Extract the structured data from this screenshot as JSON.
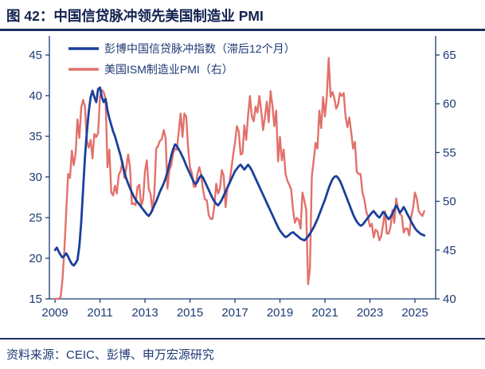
{
  "page": {
    "title": "图 42：中国信贷脉冲领先美国制造业 PMI",
    "source": "资料来源：CEIC、彭博、申万宏源研究"
  },
  "colors": {
    "title_navy": "#12214f",
    "rule_navy": "#1d2f63",
    "axis": "#1d3a75",
    "credit_impulse_blue": "#1a409a",
    "ism_pmi_red": "#e2716b"
  },
  "chart_data": {
    "type": "line",
    "title": "中国信贷脉冲领先美国制造业 PMI",
    "grid": false,
    "legend_position": "top-left",
    "x_start": 2009.0,
    "points_per_year": 12,
    "x_range": [
      2008.75,
      2025.92
    ],
    "x_ticks": [
      2009,
      2011,
      2013,
      2015,
      2017,
      2019,
      2021,
      2023,
      2025
    ],
    "left_axis": {
      "min": 15,
      "max": 45,
      "ticks": [
        15,
        20,
        25,
        30,
        35,
        40,
        45
      ]
    },
    "right_axis": {
      "min": 40,
      "max": 65,
      "ticks": [
        40,
        45,
        50,
        55,
        60,
        65
      ]
    },
    "series": [
      {
        "id": "credit-impulse",
        "name": "彭博中国信贷脉冲指数（滞后12个月）",
        "axis": "left",
        "color": "#1a409a",
        "width": 2.8,
        "values": [
          21.0,
          21.3,
          20.8,
          20.4,
          20.1,
          20.3,
          20.6,
          20.2,
          19.7,
          19.3,
          19.1,
          19.4,
          19.8,
          21.5,
          24.5,
          28.5,
          32.5,
          35.5,
          38.0,
          39.8,
          40.6,
          39.8,
          39.2,
          40.8,
          41.0,
          39.8,
          39.2,
          39.6,
          38.2,
          37.2,
          36.4,
          35.6,
          35.0,
          34.2,
          33.4,
          32.6,
          31.6,
          30.6,
          29.8,
          29.2,
          28.6,
          28.1,
          27.6,
          27.2,
          26.9,
          26.6,
          26.3,
          26.0,
          25.7,
          25.4,
          25.2,
          25.5,
          26.0,
          26.5,
          27.0,
          27.6,
          28.2,
          28.7,
          29.2,
          29.8,
          30.6,
          31.6,
          32.6,
          33.4,
          34.0,
          33.8,
          33.4,
          33.0,
          32.5,
          32.0,
          31.4,
          30.9,
          30.4,
          29.9,
          29.4,
          29.1,
          29.4,
          29.9,
          30.2,
          29.9,
          29.4,
          28.9,
          28.4,
          27.9,
          27.4,
          27.0,
          26.7,
          26.5,
          26.8,
          27.2,
          27.7,
          28.2,
          28.7,
          29.2,
          29.7,
          30.2,
          30.7,
          31.0,
          31.3,
          31.5,
          31.2,
          30.9,
          31.2,
          31.5,
          31.2,
          30.8,
          30.3,
          29.8,
          29.3,
          28.8,
          28.3,
          27.8,
          27.3,
          26.8,
          26.3,
          25.8,
          25.3,
          24.8,
          24.3,
          23.8,
          23.4,
          23.1,
          22.8,
          22.6,
          22.7,
          22.9,
          23.1,
          23.2,
          23.0,
          22.8,
          22.6,
          22.4,
          22.3,
          22.2,
          22.4,
          22.7,
          23.0,
          23.4,
          23.8,
          24.3,
          24.8,
          25.4,
          26.0,
          26.6,
          27.2,
          27.9,
          28.6,
          29.2,
          29.7,
          30.0,
          30.1,
          29.9,
          29.5,
          29.0,
          28.4,
          27.8,
          27.2,
          26.6,
          26.0,
          25.4,
          24.9,
          24.5,
          24.2,
          24.0,
          24.1,
          24.4,
          24.7,
          25.0,
          25.3,
          25.6,
          25.8,
          25.5,
          25.2,
          25.0,
          25.3,
          25.7,
          25.5,
          25.1,
          24.8,
          25.1,
          25.5,
          26.0,
          26.5,
          26.1,
          25.6,
          25.9,
          26.3,
          25.9,
          25.4,
          25.0,
          24.5,
          24.1,
          23.7,
          23.4,
          23.2,
          23.0,
          22.9,
          22.8
        ]
      },
      {
        "id": "ism-pmi",
        "name": "美国ISM制造业PMI（右）",
        "axis": "right",
        "color": "#e2716b",
        "width": 2.4,
        "values": [
          40.0,
          40.0,
          40.0,
          40.2,
          42.0,
          45.0,
          49.0,
          52.8,
          52.4,
          55.2,
          53.7,
          54.9,
          58.4,
          56.5,
          59.6,
          60.4,
          59.7,
          56.2,
          55.5,
          56.3,
          54.4,
          56.9,
          56.6,
          57.0,
          60.8,
          61.4,
          61.2,
          60.4,
          53.5,
          55.3,
          50.9,
          50.6,
          51.6,
          50.8,
          52.7,
          53.1,
          54.1,
          52.4,
          53.4,
          54.8,
          53.5,
          49.7,
          49.8,
          49.6,
          51.5,
          51.7,
          49.5,
          50.2,
          53.1,
          54.2,
          51.3,
          50.7,
          49.0,
          50.9,
          55.4,
          55.7,
          56.2,
          56.4,
          57.3,
          56.5,
          51.3,
          53.2,
          53.7,
          54.9,
          55.4,
          55.3,
          57.1,
          59.0,
          56.6,
          59.0,
          58.7,
          55.5,
          53.5,
          52.9,
          51.5,
          51.5,
          52.8,
          53.5,
          52.7,
          51.1,
          50.2,
          50.1,
          48.6,
          48.2,
          48.2,
          49.5,
          51.8,
          50.8,
          51.3,
          53.2,
          52.6,
          49.4,
          51.5,
          51.9,
          53.2,
          54.7,
          56.0,
          57.7,
          57.2,
          54.8,
          54.9,
          57.8,
          56.3,
          58.8,
          60.8,
          58.7,
          58.2,
          59.7,
          59.1,
          60.8,
          59.3,
          57.3,
          58.7,
          60.2,
          58.1,
          61.3,
          59.8,
          57.7,
          59.3,
          54.1,
          56.6,
          54.2,
          55.3,
          52.8,
          52.1,
          51.7,
          51.2,
          49.1,
          47.8,
          48.3,
          48.1,
          47.2,
          50.9,
          50.1,
          49.1,
          41.5,
          43.1,
          52.6,
          54.2,
          56.0,
          55.4,
          59.3,
          57.5,
          60.7,
          58.7,
          60.8,
          64.7,
          60.7,
          61.2,
          60.6,
          59.5,
          59.9,
          61.1,
          60.8,
          61.1,
          58.7,
          57.6,
          58.6,
          57.1,
          55.4,
          56.1,
          53.0,
          52.8,
          52.8,
          50.9,
          50.2,
          49.0,
          48.4,
          47.4,
          47.7,
          46.3,
          47.1,
          46.9,
          46.0,
          46.4,
          47.6,
          49.0,
          46.7,
          46.7,
          47.4,
          49.1,
          47.8,
          50.3,
          49.2,
          48.7,
          48.5,
          46.8,
          47.2,
          47.2,
          46.5,
          48.4,
          49.3,
          50.9,
          50.3,
          49.0,
          48.7,
          48.5,
          49.0
        ]
      }
    ]
  }
}
